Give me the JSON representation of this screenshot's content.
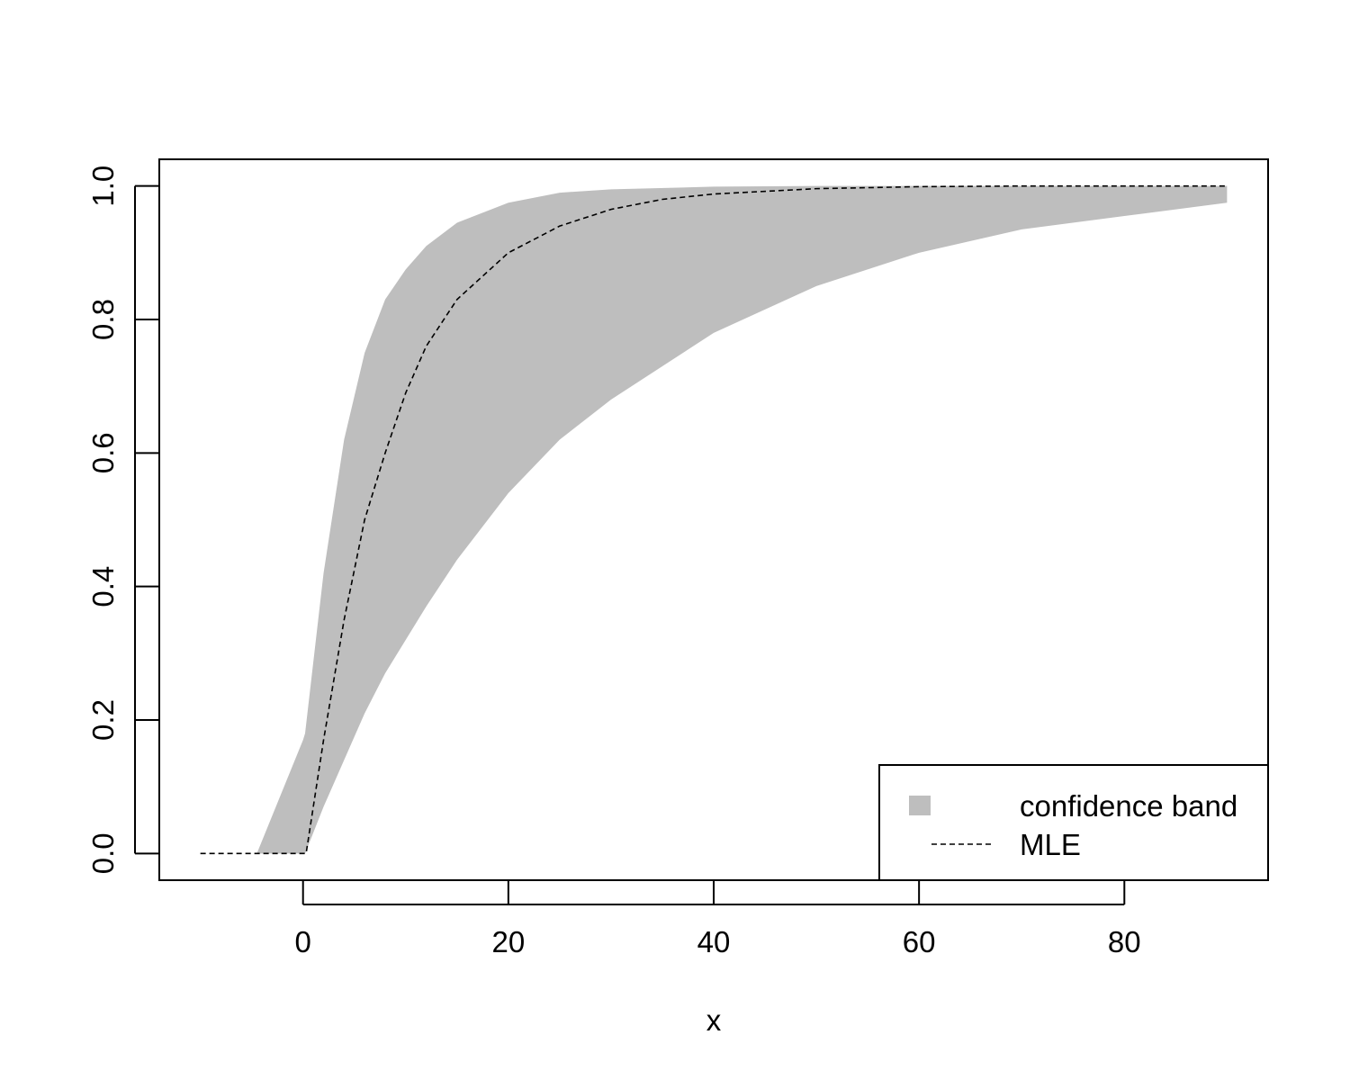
{
  "chart_data": {
    "type": "area",
    "title": "",
    "xlabel": "x",
    "ylabel": "",
    "xlim": [
      -14,
      94
    ],
    "ylim": [
      -0.04,
      1.04
    ],
    "x_ticks": [
      0,
      20,
      40,
      60,
      80
    ],
    "y_ticks": [
      0.0,
      0.2,
      0.4,
      0.6,
      0.8,
      1.0
    ],
    "x_tick_labels": [
      "0",
      "20",
      "40",
      "60",
      "80"
    ],
    "y_tick_labels": [
      "0.0",
      "0.2",
      "0.4",
      "0.6",
      "0.8",
      "1.0"
    ],
    "grid": false,
    "legend_position": "bottom-right",
    "legend": [
      {
        "label": "confidence band",
        "style": "fill",
        "color": "#bebebe"
      },
      {
        "label": "MLE",
        "style": "dashed-line",
        "color": "#000000"
      }
    ],
    "series": [
      {
        "name": "confidence band",
        "kind": "band",
        "color": "#bebebe",
        "x": [
          -4.5,
          0,
          0.2,
          2,
          4,
          6,
          8,
          10,
          12,
          15,
          20,
          25,
          30,
          40,
          50,
          60,
          70,
          80,
          90
        ],
        "lower": [
          0,
          0,
          0,
          0.07,
          0.14,
          0.21,
          0.27,
          0.32,
          0.37,
          0.44,
          0.54,
          0.62,
          0.68,
          0.78,
          0.85,
          0.9,
          0.935,
          0.955,
          0.975
        ],
        "upper": [
          0,
          0.17,
          0.18,
          0.42,
          0.62,
          0.75,
          0.83,
          0.875,
          0.91,
          0.945,
          0.975,
          0.99,
          0.995,
          0.999,
          1.0,
          1.0,
          1.0,
          1.0,
          1.0
        ]
      },
      {
        "name": "MLE",
        "kind": "dashed-line",
        "color": "#000000",
        "x": [
          -10,
          0.3,
          2,
          4,
          6,
          8,
          10,
          12,
          15,
          20,
          25,
          30,
          35,
          40,
          50,
          60,
          70,
          80,
          90
        ],
        "y": [
          0,
          0,
          0.17,
          0.35,
          0.5,
          0.6,
          0.69,
          0.76,
          0.83,
          0.9,
          0.94,
          0.965,
          0.98,
          0.988,
          0.996,
          0.999,
          1.0,
          1.0,
          1.0
        ]
      }
    ]
  }
}
